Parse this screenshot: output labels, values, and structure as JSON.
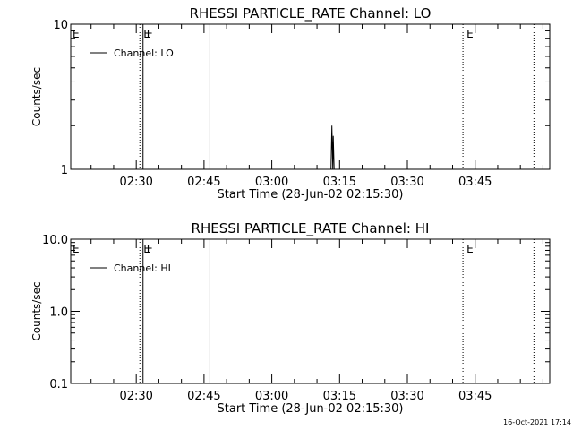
{
  "chart_data": [
    {
      "type": "line",
      "title": "RHESSI PARTICLE_RATE Channel: LO",
      "xlabel": "Start Time (28-Jun-02 02:15:30)",
      "ylabel": "Counts/sec",
      "y_scale": "log",
      "ylim": [
        1,
        10
      ],
      "y_ticks": [
        {
          "value": 1,
          "label": "1"
        },
        {
          "value": 10,
          "label": "10"
        }
      ],
      "x_range_minutes_after_start": [
        0,
        106
      ],
      "x_ticks": [
        {
          "label": "02:30",
          "minutes_after_start": 14.5
        },
        {
          "label": "02:45",
          "minutes_after_start": 29.5
        },
        {
          "label": "03:00",
          "minutes_after_start": 44.5
        },
        {
          "label": "03:15",
          "minutes_after_start": 59.5
        },
        {
          "label": "03:30",
          "minutes_after_start": 74.5
        },
        {
          "label": "03:45",
          "minutes_after_start": 89.5
        }
      ],
      "legend": {
        "entries": [
          "Channel: LO"
        ],
        "placement": "top-left"
      },
      "series": [
        {
          "name": "Channel: LO",
          "points": [
            [
              57.6,
              1
            ],
            [
              57.8,
              2.0
            ],
            [
              58.0,
              1
            ],
            [
              58.1,
              1.7
            ],
            [
              58.3,
              1
            ]
          ]
        }
      ],
      "markers": [
        {
          "label": "E",
          "style": "dotted",
          "minutes_after_start": 15.3
        },
        {
          "label": "F",
          "style": "solid",
          "minutes_after_start": 16.0
        },
        {
          "label": "",
          "style": "solid",
          "minutes_after_start": 30.8
        },
        {
          "label": "E",
          "style": "dotted",
          "minutes_after_start": 86.8
        },
        {
          "label": "",
          "style": "dotted",
          "minutes_after_start": 102.5
        }
      ],
      "grid": false
    },
    {
      "type": "line",
      "title": "RHESSI PARTICLE_RATE Channel: HI",
      "xlabel": "Start Time (28-Jun-02 02:15:30)",
      "ylabel": "Counts/sec",
      "y_scale": "log",
      "ylim": [
        0.1,
        10
      ],
      "y_ticks": [
        {
          "value": 0.1,
          "label": "0.1"
        },
        {
          "value": 1,
          "label": "1.0"
        },
        {
          "value": 10,
          "label": "10.0"
        }
      ],
      "x_range_minutes_after_start": [
        0,
        106
      ],
      "x_ticks": [
        {
          "label": "02:30",
          "minutes_after_start": 14.5
        },
        {
          "label": "02:45",
          "minutes_after_start": 29.5
        },
        {
          "label": "03:00",
          "minutes_after_start": 44.5
        },
        {
          "label": "03:15",
          "minutes_after_start": 59.5
        },
        {
          "label": "03:30",
          "minutes_after_start": 74.5
        },
        {
          "label": "03:45",
          "minutes_after_start": 89.5
        }
      ],
      "legend": {
        "entries": [
          "Channel: HI"
        ],
        "placement": "top-left"
      },
      "series": [
        {
          "name": "Channel: HI",
          "points": []
        }
      ],
      "markers": [
        {
          "label": "E",
          "style": "dotted",
          "minutes_after_start": 15.3
        },
        {
          "label": "F",
          "style": "solid",
          "minutes_after_start": 16.0
        },
        {
          "label": "",
          "style": "solid",
          "minutes_after_start": 30.8
        },
        {
          "label": "E",
          "style": "dotted",
          "minutes_after_start": 86.8
        },
        {
          "label": "",
          "style": "dotted",
          "minutes_after_start": 102.5
        }
      ],
      "grid": false
    }
  ],
  "footer": {
    "timestamp": "16-Oct-2021 17:14"
  }
}
